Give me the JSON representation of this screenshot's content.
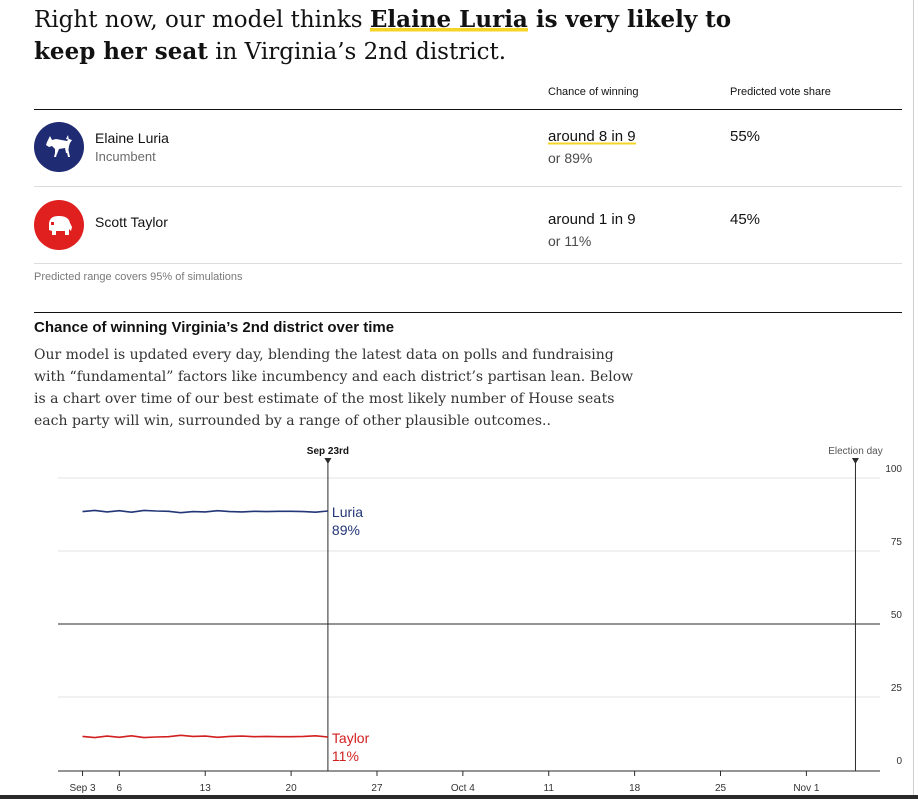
{
  "headline": {
    "prefix": "Right now, our model thinks ",
    "name": "Elaine Luria",
    "bold_rest": " is very likely to keep her seat",
    "suffix": " in Virginia’s 2nd district."
  },
  "table": {
    "col_chance": "Chance of winning",
    "col_share": "Predicted vote share",
    "rows": [
      {
        "name": "Elaine Luria",
        "subtitle": "Incumbent",
        "party_icon": "donkey-icon",
        "color": "#1f2b72",
        "chance_main": "around 8 in 9",
        "chance_sub": "or 89%",
        "share": "55%"
      },
      {
        "name": "Scott Taylor",
        "subtitle": "",
        "party_icon": "elephant-icon",
        "color": "#e01f1f",
        "chance_main": "around 1 in 9",
        "chance_sub": "or 11%",
        "share": "45%"
      }
    ],
    "footnote": "Predicted range covers 95% of simulations"
  },
  "section": {
    "title": "Chance of winning Virginia’s 2nd district over time",
    "body": "Our model is updated every day, blending the latest data on polls and fundraising with “fundamental” factors like incumbency and each district’s partisan lean. Below is a chart over time of our best estimate of the most likely number of House seats each party will win, surrounded by a range of other plausible outcomes.."
  },
  "chart_data": {
    "type": "line",
    "x_ticks": [
      "Sep 3",
      "6",
      "13",
      "20",
      "27",
      "Oct 4",
      "11",
      "18",
      "25",
      "Nov 1"
    ],
    "x_tick_days": [
      0,
      3,
      10,
      17,
      24,
      31,
      38,
      45,
      52,
      59
    ],
    "xlim_days": [
      -2,
      65
    ],
    "y_ticks": [
      "100",
      "75",
      "50",
      "25",
      "0"
    ],
    "ylim": [
      0,
      100
    ],
    "markers": [
      {
        "label": "Sep 23rd",
        "day": 20
      },
      {
        "label": "Election day",
        "day": 63
      }
    ],
    "reference_line": 50,
    "grid": true,
    "series": [
      {
        "name": "Luria",
        "end_label": "89%",
        "color": "#233677",
        "values": [
          88.5,
          88.9,
          88.4,
          88.8,
          88.3,
          88.9,
          88.7,
          88.6,
          88.1,
          88.5,
          88.4,
          88.8,
          88.5,
          88.4,
          88.6,
          88.5,
          88.6,
          88.6,
          88.5,
          88.3,
          88.7
        ]
      },
      {
        "name": "Taylor",
        "end_label": "11%",
        "color": "#d21f1f",
        "values": [
          11.5,
          11.1,
          11.6,
          11.2,
          11.7,
          11.1,
          11.3,
          11.4,
          11.9,
          11.5,
          11.6,
          11.2,
          11.5,
          11.6,
          11.4,
          11.5,
          11.4,
          11.4,
          11.5,
          11.7,
          11.3
        ]
      }
    ]
  }
}
